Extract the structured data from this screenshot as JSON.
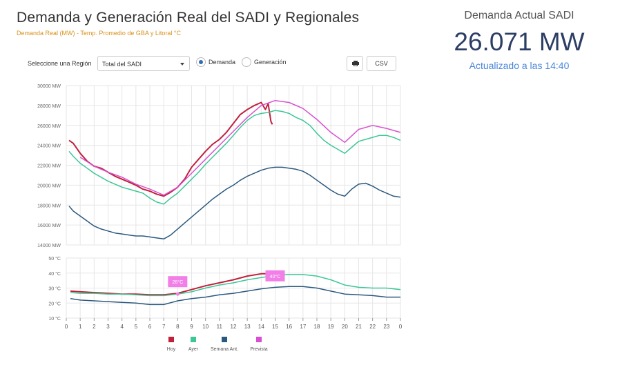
{
  "header": {
    "title": "Demanda y Generación Real del SADI y Regionales",
    "subtitle": "Demanda Real (MW) - Temp. Promedio de GBA y Litoral °C"
  },
  "controls": {
    "region_label": "Seleccione una Región",
    "region_value": "Total del SADI",
    "radio_demanda": "Demanda",
    "radio_generacion": "Generación",
    "csv_label": "CSV"
  },
  "summary": {
    "label": "Demanda Actual SADI",
    "value": "26.071 MW",
    "updated": "Actualizado a las 14:40"
  },
  "colors": {
    "hoy": "#c0203a",
    "ayer": "#3cc795",
    "semana": "#2a587e",
    "prevista": "#d850d0"
  },
  "chart_data": [
    {
      "type": "line",
      "title": "Demanda Real (MW)",
      "x_ticks": [
        "0",
        "1",
        "2",
        "3",
        "4",
        "5",
        "6",
        "7",
        "8",
        "9",
        "10",
        "11",
        "12",
        "13",
        "14",
        "15",
        "16",
        "17",
        "18",
        "19",
        "20",
        "21",
        "22",
        "23",
        "0"
      ],
      "y_ticks": [
        "14000 MW",
        "16000 MW",
        "18000 MW",
        "20000 MW",
        "22000 MW",
        "24000 MW",
        "26000 MW",
        "28000 MW",
        "30000 MW"
      ],
      "xlim": [
        0,
        24
      ],
      "ylim": [
        14000,
        30000
      ],
      "series": [
        {
          "name": "Hoy",
          "key": "hoy",
          "x": [
            0.2,
            0.5,
            1,
            1.5,
            2,
            2.5,
            3,
            3.5,
            4,
            4.5,
            5,
            5.5,
            6,
            6.5,
            7,
            7.5,
            8,
            8.5,
            9,
            9.5,
            10,
            10.5,
            11,
            11.5,
            12,
            12.5,
            13,
            13.5,
            14,
            14.3,
            14.5,
            14.7,
            14.8
          ],
          "y": [
            24500,
            24200,
            23200,
            22400,
            21900,
            21700,
            21300,
            20900,
            20600,
            20300,
            20000,
            19600,
            19400,
            19100,
            18900,
            19300,
            19800,
            20600,
            21800,
            22600,
            23400,
            24100,
            24600,
            25300,
            26200,
            27100,
            27600,
            28000,
            28300,
            27600,
            28200,
            26400,
            26100
          ]
        },
        {
          "name": "Ayer",
          "key": "ayer",
          "x": [
            0.2,
            0.5,
            1,
            1.5,
            2,
            2.5,
            3,
            3.5,
            4,
            4.5,
            5,
            5.5,
            6,
            6.5,
            7,
            7.5,
            8,
            8.5,
            9,
            9.5,
            10,
            10.5,
            11,
            11.5,
            12,
            12.5,
            13,
            13.5,
            14,
            14.5,
            15,
            15.5,
            16,
            16.5,
            17,
            17.5,
            18,
            18.5,
            19,
            19.5,
            20,
            20.5,
            21,
            21.5,
            22,
            22.5,
            23,
            23.5,
            24
          ],
          "y": [
            23400,
            22900,
            22200,
            21700,
            21200,
            20800,
            20400,
            20100,
            19800,
            19600,
            19400,
            19200,
            18700,
            18300,
            18100,
            18700,
            19200,
            19900,
            20600,
            21300,
            22100,
            22800,
            23500,
            24200,
            25000,
            25800,
            26500,
            27000,
            27200,
            27300,
            27500,
            27400,
            27200,
            26800,
            26500,
            26000,
            25200,
            24500,
            24000,
            23600,
            23200,
            23800,
            24400,
            24600,
            24800,
            25000,
            25000,
            24800,
            24500
          ]
        },
        {
          "name": "Semana Ant.",
          "key": "semana",
          "x": [
            0.2,
            0.5,
            1,
            1.5,
            2,
            2.5,
            3,
            3.5,
            4,
            4.5,
            5,
            5.5,
            6,
            6.5,
            7,
            7.5,
            8,
            8.5,
            9,
            9.5,
            10,
            10.5,
            11,
            11.5,
            12,
            12.5,
            13,
            13.5,
            14,
            14.5,
            15,
            15.5,
            16,
            16.5,
            17,
            17.5,
            18,
            18.5,
            19,
            19.5,
            20,
            20.5,
            21,
            21.5,
            22,
            22.5,
            23,
            23.5,
            24
          ],
          "y": [
            17900,
            17400,
            16900,
            16400,
            15900,
            15600,
            15400,
            15200,
            15100,
            15000,
            14900,
            14900,
            14800,
            14700,
            14600,
            15000,
            15600,
            16200,
            16800,
            17400,
            18000,
            18600,
            19100,
            19600,
            20000,
            20500,
            20900,
            21200,
            21500,
            21700,
            21800,
            21800,
            21700,
            21600,
            21400,
            21000,
            20500,
            20000,
            19500,
            19100,
            18900,
            19600,
            20100,
            20200,
            19900,
            19500,
            19200,
            18900,
            18800
          ]
        },
        {
          "name": "Prevista",
          "key": "prevista",
          "x": [
            1,
            2,
            3,
            4,
            5,
            6,
            7,
            8,
            9,
            10,
            11,
            12,
            13,
            14,
            15,
            16,
            17,
            18,
            19,
            20,
            21,
            22,
            23,
            24
          ],
          "y": [
            22800,
            21900,
            21300,
            20800,
            20100,
            19600,
            19000,
            19800,
            21200,
            22600,
            24000,
            25400,
            26800,
            28000,
            28500,
            28300,
            27700,
            26600,
            25300,
            24300,
            25600,
            26000,
            25700,
            25300
          ]
        }
      ]
    },
    {
      "type": "line",
      "title": "Temp. Promedio de GBA y Litoral °C",
      "x_ticks": [
        "0",
        "1",
        "2",
        "3",
        "4",
        "5",
        "6",
        "7",
        "8",
        "9",
        "10",
        "11",
        "12",
        "13",
        "14",
        "15",
        "16",
        "17",
        "18",
        "19",
        "20",
        "21",
        "22",
        "23",
        "0"
      ],
      "y_ticks": [
        "10 °C",
        "20 °C",
        "30 °C",
        "40 °C",
        "50 °C"
      ],
      "xlim": [
        0,
        24
      ],
      "ylim": [
        10,
        50
      ],
      "series": [
        {
          "name": "Hoy",
          "key": "hoy",
          "x": [
            0.3,
            1,
            2,
            3,
            4,
            5,
            6,
            7,
            8,
            9,
            10,
            11,
            12,
            13,
            14,
            14.5
          ],
          "y": [
            28,
            27.5,
            27,
            26.5,
            26,
            26,
            25.5,
            25.5,
            26.5,
            29,
            31.5,
            33.5,
            35.5,
            38,
            39.5,
            39.5
          ]
        },
        {
          "name": "Ayer",
          "key": "ayer",
          "x": [
            0.3,
            1,
            2,
            3,
            4,
            5,
            6,
            7,
            8,
            9,
            10,
            11,
            12,
            13,
            14,
            15,
            16,
            17,
            18,
            19,
            20,
            21,
            22,
            23,
            24
          ],
          "y": [
            27,
            26.5,
            26.5,
            26,
            26,
            25.5,
            25,
            25,
            26,
            27.5,
            30,
            32,
            33.5,
            35.5,
            37,
            38.5,
            39,
            39,
            38,
            35.5,
            32,
            30.5,
            30,
            30,
            29
          ]
        },
        {
          "name": "Semana Ant.",
          "key": "semana",
          "x": [
            0.3,
            1,
            2,
            3,
            4,
            5,
            6,
            7,
            8,
            9,
            10,
            11,
            12,
            13,
            14,
            15,
            16,
            17,
            18,
            19,
            20,
            21,
            22,
            23,
            24
          ],
          "y": [
            23,
            22,
            21.5,
            21,
            20.5,
            20,
            19,
            19,
            21.5,
            23,
            24,
            25.5,
            26.5,
            28,
            29.5,
            30.5,
            31,
            31,
            30,
            28,
            26,
            25.5,
            25,
            24,
            24
          ]
        }
      ],
      "annotations": [
        {
          "label": "26°C",
          "x": 8,
          "y": 26
        },
        {
          "label": "40°C",
          "x": 15,
          "y": 40
        }
      ]
    }
  ],
  "legend": [
    {
      "label": "Hoy",
      "key": "hoy"
    },
    {
      "label": "Ayer",
      "key": "ayer"
    },
    {
      "label": "Semana Ant.",
      "key": "semana"
    },
    {
      "label": "Prevista",
      "key": "prevista"
    }
  ]
}
